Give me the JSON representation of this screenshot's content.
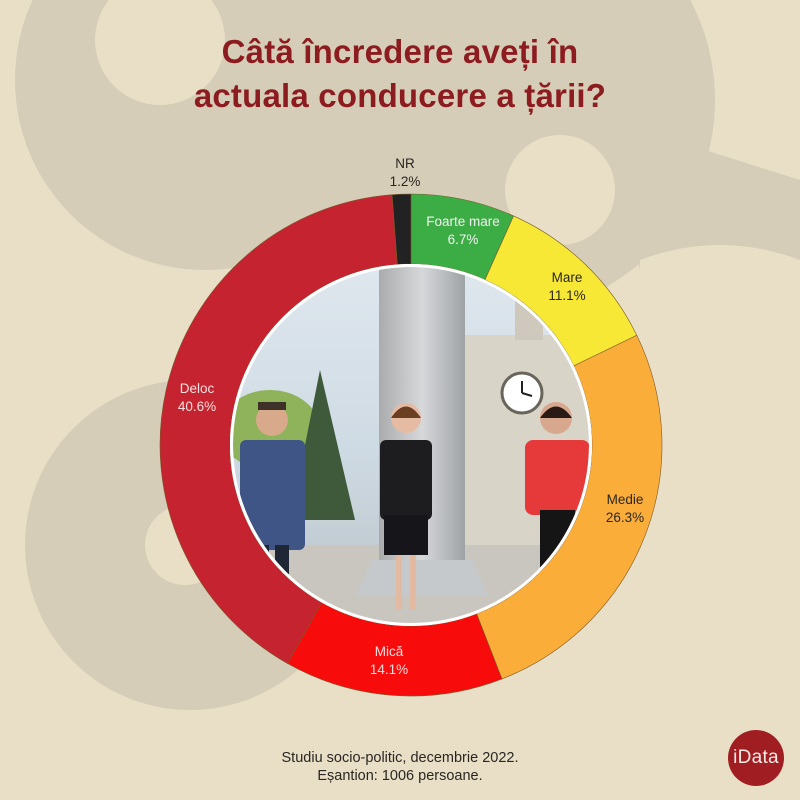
{
  "title": {
    "line1": "Câtă încredere aveți în",
    "line2": "actuala conducere a țării?"
  },
  "footer": {
    "line1": "Studiu socio-politic, decembrie 2022.",
    "line2": "Eșantion: 1006 persoane."
  },
  "logo": {
    "text": "iData",
    "color": "#a01e22"
  },
  "colors": {
    "background": "#e8dfc6",
    "background_shape": "#d6cdb8",
    "title": "#8c1c20"
  },
  "segments": [
    {
      "name": "Foarte mare",
      "pct_label": "6.7%",
      "value": 6.7,
      "color": "#3cac44",
      "text_color": "#f2f2f2"
    },
    {
      "name": "Mare",
      "pct_label": "11.1%",
      "value": 11.1,
      "color": "#f7e835",
      "text_color": "#2a2622"
    },
    {
      "name": "Medie",
      "pct_label": "26.3%",
      "value": 26.3,
      "color": "#fbad3a",
      "text_color": "#2a2622"
    },
    {
      "name": "Mică",
      "pct_label": "14.1%",
      "value": 14.1,
      "color": "#f80b0b",
      "text_color": "#f7dede"
    },
    {
      "name": "Deloc",
      "pct_label": "40.6%",
      "value": 40.6,
      "color": "#c4232f",
      "text_color": "#f5e1e1"
    },
    {
      "name": "NR",
      "pct_label": "1.2%",
      "value": 1.2,
      "color": "#222222",
      "text_color": "#2a2622"
    }
  ],
  "chart_data": {
    "type": "pie",
    "subtype": "donut",
    "title": "Câtă încredere aveți în actuala conducere a țării?",
    "categories": [
      "Foarte mare",
      "Mare",
      "Medie",
      "Mică",
      "Deloc",
      "NR"
    ],
    "values": [
      6.7,
      11.1,
      26.3,
      14.1,
      40.6,
      1.2
    ],
    "unit": "%",
    "colors": [
      "#3cac44",
      "#f7e835",
      "#fbad3a",
      "#f80b0b",
      "#c4232f",
      "#222222"
    ],
    "start_angle": "12 o'clock",
    "direction": "clockwise",
    "legend": "none (direct labels on segments)",
    "center_image": "photograph of three officials standing in a square",
    "source_note": "Studiu socio-politic, decembrie 2022. Eșantion: 1006 persoane.",
    "xlabel": "",
    "ylabel": ""
  }
}
